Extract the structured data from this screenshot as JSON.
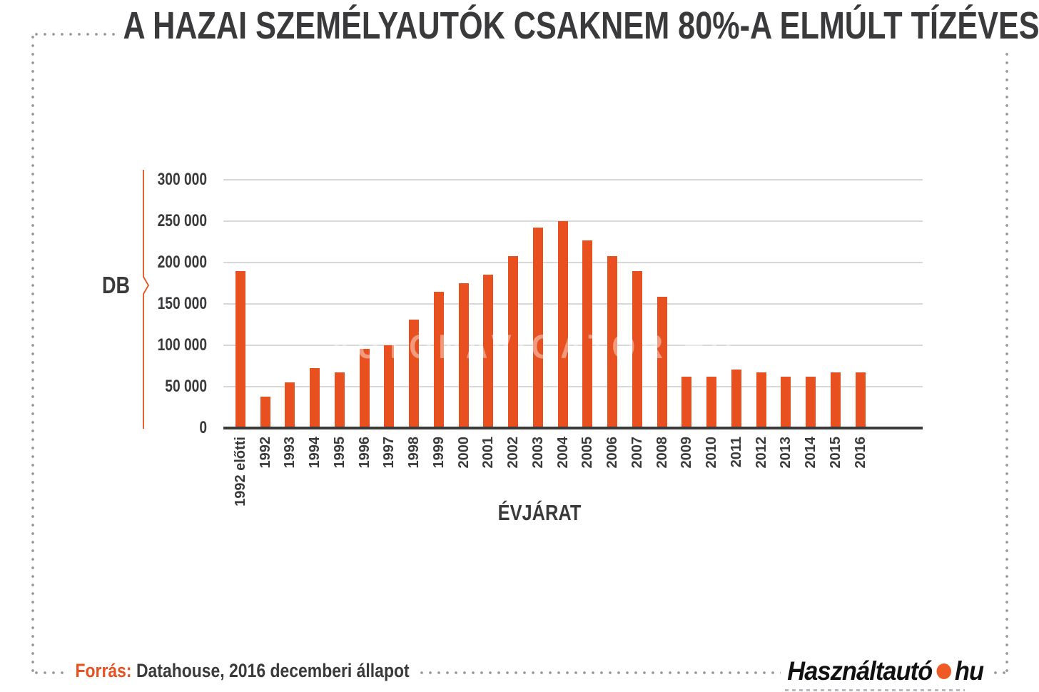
{
  "title": "A HAZAI SZEMÉLYAUTÓK CSAKNEM 80%-A ELMÚLT TÍZÉVES",
  "colors": {
    "accent": "#E8511F",
    "dark_text": "#3A3A3C",
    "grid": "#D8D8D8",
    "axis": "#3A3A3A",
    "border_dots": "#97979B",
    "logo_black": "#111111",
    "logo_orange": "#EE5A24"
  },
  "y_axis": {
    "unit": "DB",
    "ticks": [
      {
        "label": "300 000",
        "value": 300000
      },
      {
        "label": "250 000",
        "value": 250000
      },
      {
        "label": "200 000",
        "value": 200000
      },
      {
        "label": "150 000",
        "value": 150000
      },
      {
        "label": "100 000",
        "value": 100000
      },
      {
        "label": "50 000",
        "value": 50000
      },
      {
        "label": "0",
        "value": 0
      }
    ]
  },
  "x_axis": {
    "label": "ÉVJÁRAT"
  },
  "watermark": "AUTÓNAVIGÁTOR.HU",
  "chart_data": {
    "type": "bar",
    "title": "A HAZAI SZEMÉLYAUTÓK CSAKNEM 80%-A ELMÚLT TÍZÉVES",
    "xlabel": "ÉVJÁRAT",
    "ylabel": "DB",
    "ylim": [
      0,
      300000
    ],
    "grid": true,
    "bar_color": "#E8511F",
    "categories": [
      "1992 előtti",
      "1992",
      "1993",
      "1994",
      "1995",
      "1996",
      "1997",
      "1998",
      "1999",
      "2000",
      "2001",
      "2002",
      "2003",
      "2004",
      "2005",
      "2006",
      "2007",
      "2008",
      "2009",
      "2010",
      "2011",
      "2012",
      "2013",
      "2014",
      "2015",
      "2016"
    ],
    "values": [
      190000,
      38000,
      55000,
      72000,
      67000,
      96000,
      100000,
      131000,
      165000,
      175000,
      185000,
      208000,
      242000,
      250000,
      227000,
      208000,
      190000,
      159000,
      62000,
      62000,
      71000,
      67000,
      62000,
      62000,
      67000,
      67000
    ]
  },
  "footer": {
    "source_label": "Forrás:",
    "source_text": "Datahouse, 2016 decemberi állapot",
    "logo": {
      "text1": "Használtautó",
      "text2": "hu"
    }
  }
}
